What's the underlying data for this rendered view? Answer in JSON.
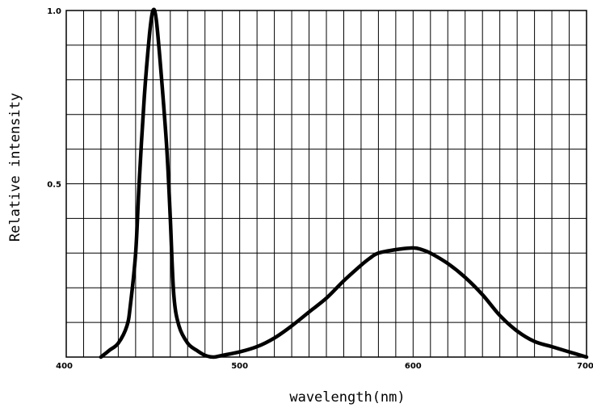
{
  "chart_data": {
    "type": "line",
    "title": "",
    "xlabel": "wavelength(nm)",
    "ylabel": "Relative intensity",
    "xlim": [
      400,
      700
    ],
    "ylim": [
      0,
      1.0
    ],
    "x_ticks": [
      {
        "value": 400,
        "label": "400"
      },
      {
        "value": 500,
        "label": "500"
      },
      {
        "value": 600,
        "label": "600"
      },
      {
        "value": 700,
        "label": "700"
      }
    ],
    "y_ticks": [
      {
        "value": 0.5,
        "label": "0.5"
      },
      {
        "value": 1.0,
        "label": "1.0"
      }
    ],
    "grid": true,
    "grid_x_step": 10,
    "grid_y_step": 0.1,
    "line_color": "#000000",
    "series": [
      {
        "x": [
          420,
          425,
          430,
          435,
          437,
          440,
          442,
          445,
          448,
          450,
          452,
          455,
          458,
          460,
          462,
          465,
          470,
          475,
          480,
          485,
          490,
          500,
          510,
          520,
          530,
          540,
          550,
          560,
          570,
          575,
          580,
          590,
          600,
          605,
          610,
          620,
          630,
          640,
          650,
          660,
          670,
          680,
          690,
          700
        ],
        "y": [
          0.0,
          0.02,
          0.04,
          0.09,
          0.15,
          0.3,
          0.5,
          0.75,
          0.93,
          1.0,
          0.97,
          0.8,
          0.6,
          0.4,
          0.18,
          0.09,
          0.04,
          0.02,
          0.005,
          0.0,
          0.005,
          0.015,
          0.03,
          0.055,
          0.09,
          0.13,
          0.17,
          0.22,
          0.265,
          0.285,
          0.3,
          0.31,
          0.315,
          0.31,
          0.3,
          0.27,
          0.23,
          0.18,
          0.12,
          0.075,
          0.045,
          0.03,
          0.015,
          0.0
        ]
      }
    ]
  }
}
